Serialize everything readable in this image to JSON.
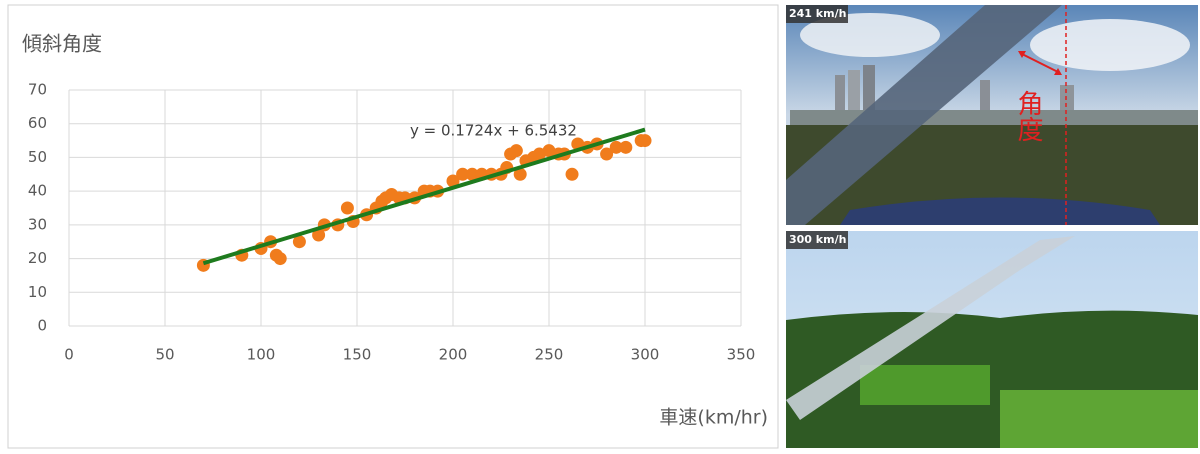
{
  "chart_data": {
    "type": "scatter",
    "y_label": "傾斜角度",
    "x_label": "車速(km/hr)",
    "x": [
      70,
      90,
      100,
      105,
      108,
      110,
      120,
      130,
      133,
      140,
      145,
      148,
      155,
      160,
      163,
      165,
      168,
      172,
      175,
      180,
      185,
      188,
      192,
      200,
      205,
      210,
      215,
      220,
      225,
      228,
      230,
      233,
      235,
      238,
      242,
      245,
      250,
      255,
      258,
      262,
      265,
      270,
      275,
      280,
      285,
      290,
      298,
      300
    ],
    "values": [
      18,
      21,
      23,
      25,
      21,
      20,
      25,
      27,
      30,
      30,
      35,
      31,
      33,
      35,
      37,
      38,
      39,
      38,
      38,
      38,
      40,
      40,
      40,
      43,
      45,
      45,
      45,
      45,
      45,
      47,
      51,
      52,
      45,
      49,
      50,
      51,
      52,
      51,
      51,
      45,
      54,
      53,
      54,
      51,
      53,
      53,
      55,
      55
    ],
    "color": "#f07c1c",
    "trendline": {
      "label": "y = 0.1724x + 6.5432",
      "x": [
        70,
        300
      ],
      "values": [
        18.61,
        58.26
      ],
      "color": "#1e7b1e"
    },
    "xlim": [
      0,
      350
    ],
    "xticks": [
      0,
      50,
      100,
      150,
      200,
      250,
      300,
      350
    ],
    "ylim": [
      0,
      70
    ],
    "yticks": [
      0,
      10,
      20,
      30,
      40,
      50,
      60,
      70
    ],
    "grid": true
  },
  "photos": [
    {
      "speed_label": "241 km/h",
      "annotation": "角度"
    },
    {
      "speed_label": "300 km/h"
    }
  ]
}
